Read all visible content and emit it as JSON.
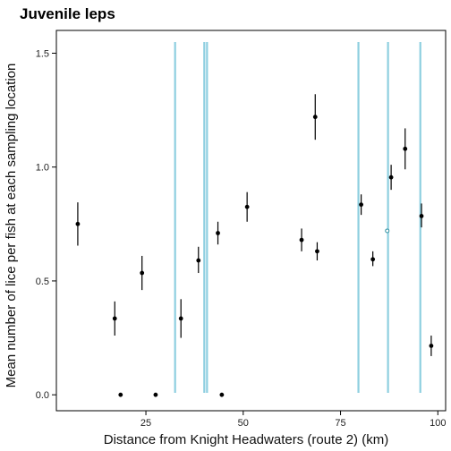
{
  "chart_data": {
    "type": "scatter",
    "title": "Juvenile leps",
    "xlabel": "Distance from Knight Headwaters (route 2) (km)",
    "ylabel": "Mean number of lice per fish at each sampling location",
    "xlim": [
      2,
      102
    ],
    "ylim": [
      -0.07,
      1.6
    ],
    "x_ticks": [
      25,
      50,
      75,
      100
    ],
    "x_tick_labels": [
      "25",
      "50",
      "75",
      "100"
    ],
    "y_ticks": [
      0.0,
      0.5,
      1.0,
      1.5
    ],
    "y_tick_labels": [
      "0.0",
      "0.5",
      "1.0",
      "1.5"
    ],
    "grid": false,
    "reference_lines": {
      "orientation": "vertical",
      "color": "#8ecfe0",
      "x": [
        32.5,
        40.0,
        40.7,
        79.6,
        87.2,
        95.5
      ]
    },
    "points": [
      {
        "x": 7.5,
        "y": 0.75,
        "lower": 0.655,
        "upper": 0.845
      },
      {
        "x": 17.0,
        "y": 0.335,
        "lower": 0.26,
        "upper": 0.41
      },
      {
        "x": 18.5,
        "y": 0.0,
        "lower": 0.0,
        "upper": 0.0
      },
      {
        "x": 24.0,
        "y": 0.535,
        "lower": 0.46,
        "upper": 0.61
      },
      {
        "x": 27.5,
        "y": 0.0,
        "lower": 0.0,
        "upper": 0.0
      },
      {
        "x": 34.0,
        "y": 0.335,
        "lower": 0.25,
        "upper": 0.42
      },
      {
        "x": 38.5,
        "y": 0.59,
        "lower": 0.535,
        "upper": 0.65
      },
      {
        "x": 43.5,
        "y": 0.71,
        "lower": 0.66,
        "upper": 0.76
      },
      {
        "x": 44.5,
        "y": 0.0,
        "lower": 0.0,
        "upper": 0.0
      },
      {
        "x": 51.0,
        "y": 0.825,
        "lower": 0.76,
        "upper": 0.89
      },
      {
        "x": 65.0,
        "y": 0.68,
        "lower": 0.63,
        "upper": 0.73
      },
      {
        "x": 68.5,
        "y": 1.22,
        "lower": 1.12,
        "upper": 1.32
      },
      {
        "x": 69.0,
        "y": 0.63,
        "lower": 0.59,
        "upper": 0.67
      },
      {
        "x": 80.3,
        "y": 0.835,
        "lower": 0.79,
        "upper": 0.88
      },
      {
        "x": 83.3,
        "y": 0.595,
        "lower": 0.565,
        "upper": 0.63
      },
      {
        "x": 88.0,
        "y": 0.955,
        "lower": 0.9,
        "upper": 1.01
      },
      {
        "x": 91.6,
        "y": 1.08,
        "lower": 0.99,
        "upper": 1.17
      },
      {
        "x": 95.8,
        "y": 0.785,
        "lower": 0.735,
        "upper": 0.84
      },
      {
        "x": 98.3,
        "y": 0.215,
        "lower": 0.17,
        "upper": 0.26
      }
    ],
    "open_points": [
      {
        "x": 87.0,
        "y": 0.72
      }
    ]
  }
}
